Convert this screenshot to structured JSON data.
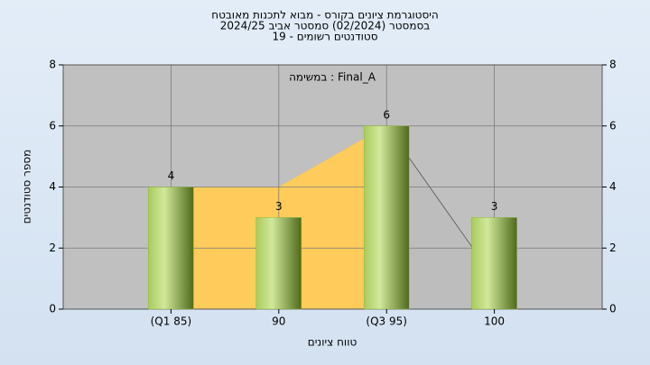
{
  "chart_data": {
    "type": "bar",
    "title": [
      "היסטוגרמת ציונים בקורס - מבוא לתכנות מאובטח",
      "בסמסטר  (02/2024)  סמסטר אביב 2024/25",
      "סטודנטים רשומים - 19"
    ],
    "annotation": "במשימה : Final_A",
    "xlabel": "טווח ציונים",
    "ylabel": "מספר סטודנטים",
    "categories": [
      "(Q1 85)",
      "90",
      "(Q3 95)",
      "100"
    ],
    "series": [
      {
        "color": "#8cb43c",
        "values": [
          4,
          3,
          6,
          3
        ]
      }
    ],
    "area": {
      "values": [
        4,
        4,
        6,
        1
      ],
      "colors": [
        "#ffcc5c",
        "#ffcc5c",
        "#bdbdbd"
      ]
    },
    "ylim": [
      0,
      8
    ],
    "yticks": [
      0,
      2,
      4,
      6,
      8
    ],
    "y2lim": [
      0,
      8
    ],
    "y2ticks": [
      0,
      2,
      4,
      6,
      8
    ],
    "grid": true,
    "plot_background": "#c0c0c0"
  }
}
